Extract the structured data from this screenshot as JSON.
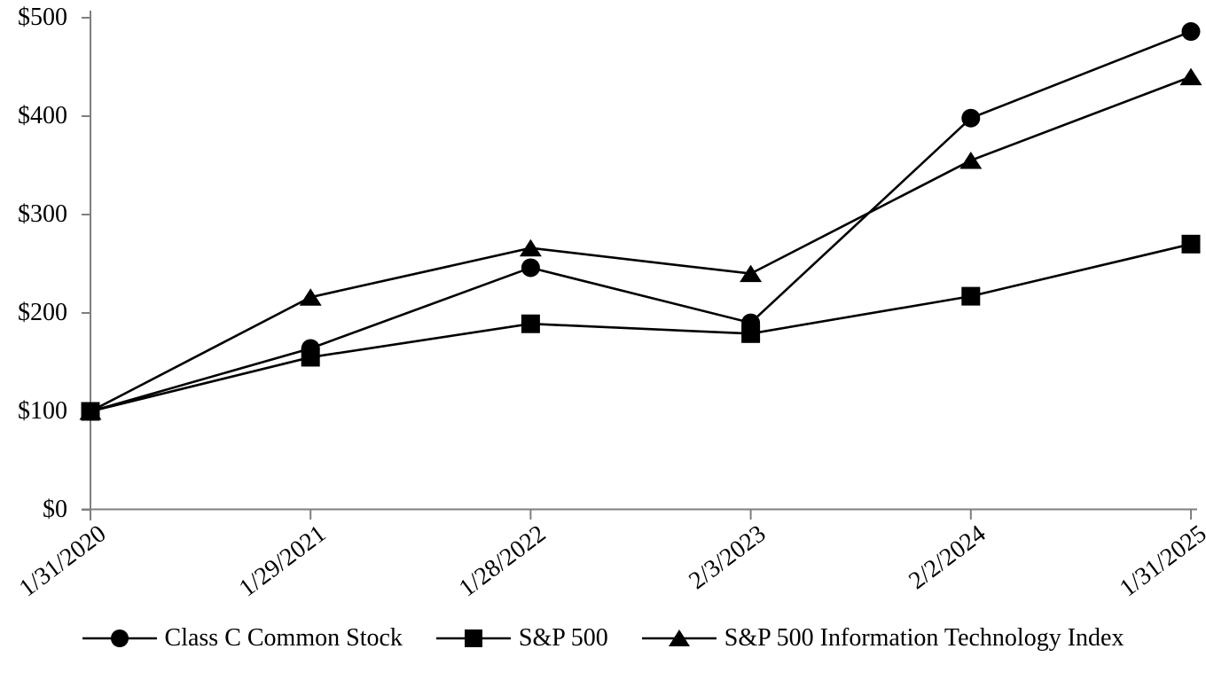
{
  "chart_data": {
    "type": "line",
    "title": "",
    "xlabel": "",
    "ylabel": "",
    "grid": "off",
    "legend_position": "bottom",
    "ylim": [
      0,
      500
    ],
    "y_ticks": [
      0,
      100,
      200,
      300,
      400,
      500
    ],
    "y_tick_labels": [
      "$0",
      "$100",
      "$200",
      "$300",
      "$400",
      "$500"
    ],
    "categories": [
      "1/31/2020",
      "1/29/2021",
      "1/28/2022",
      "2/3/2023",
      "2/2/2024",
      "1/31/2025"
    ],
    "series": [
      {
        "name": "Class C Common Stock",
        "marker": "circle",
        "values": [
          100,
          164,
          246,
          190,
          398,
          486
        ]
      },
      {
        "name": "S&P 500",
        "marker": "square",
        "values": [
          100,
          155,
          189,
          179,
          217,
          270
        ]
      },
      {
        "name": "S&P 500 Information Technology Index",
        "marker": "triangle",
        "values": [
          100,
          216,
          266,
          240,
          355,
          440
        ]
      }
    ],
    "line_color": "#000000",
    "axis_color": "#7f7f7f",
    "background_color": "#ffffff"
  }
}
